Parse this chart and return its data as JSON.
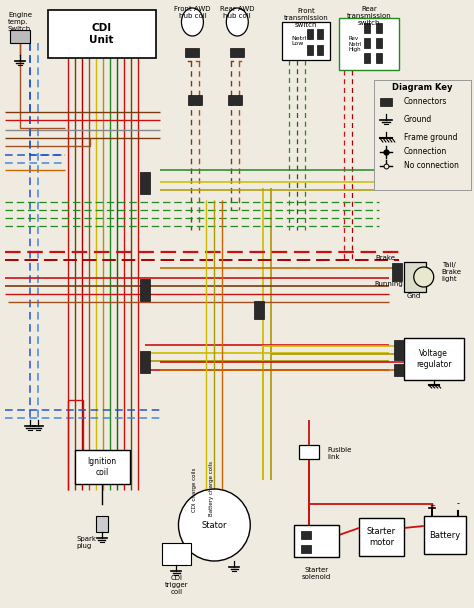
{
  "bg_color": "#f0ebe0",
  "wire_colors": {
    "red": "#cc1111",
    "red_dk": "#aa0000",
    "blue": "#2255cc",
    "blue_lt": "#4488dd",
    "green": "#228822",
    "green_dk": "#116611",
    "brown": "#7a3a10",
    "brown_lt": "#a05020",
    "yellow": "#ccbb00",
    "yellow_dk": "#aa9900",
    "orange": "#cc6600",
    "gray": "#888888",
    "black": "#111111",
    "white": "#ffffff"
  },
  "labels": {
    "engine_temp": "Engine\ntemp.\nSwitch",
    "cdi_unit": "CDI\nUnit",
    "front_awd_hub": "Front AWD\nhub coil",
    "rear_awd_hub": "Rear AWD\nhub coil",
    "front_trans": "Front\ntransmission\nswitch",
    "rear_trans": "Rear\ntransmission\nswitch",
    "netrl_low": "Netrl\nLow",
    "rev_netrl_high": "Rev\nNetrl\nHigh",
    "diagram_key": "Diagram Key",
    "connectors": "Connectors",
    "ground": "Ground",
    "frame_ground": "Frame ground",
    "connection": "Connection",
    "no_connection": "No connection",
    "brake": "Brake",
    "running": "Running",
    "gnd": "Gnd",
    "tail_brake": "Tail/\nBrake\nlight",
    "voltage_reg": "Voltage\nregulator",
    "fusible_link": "Fusible\nlink",
    "ignition_coil": "Ignition\ncoil",
    "spark_plug": "Spark\nplug",
    "cdi_trigger": "CDI\ntrigger\ncoil",
    "stator": "Stator",
    "cdi_charge": "CDI charge coils",
    "battery_charge": "Battery charge coils",
    "starter_solenoid": "Starter\nsolenoid",
    "starter_motor": "Starter\nmotor",
    "battery": "Battery"
  }
}
